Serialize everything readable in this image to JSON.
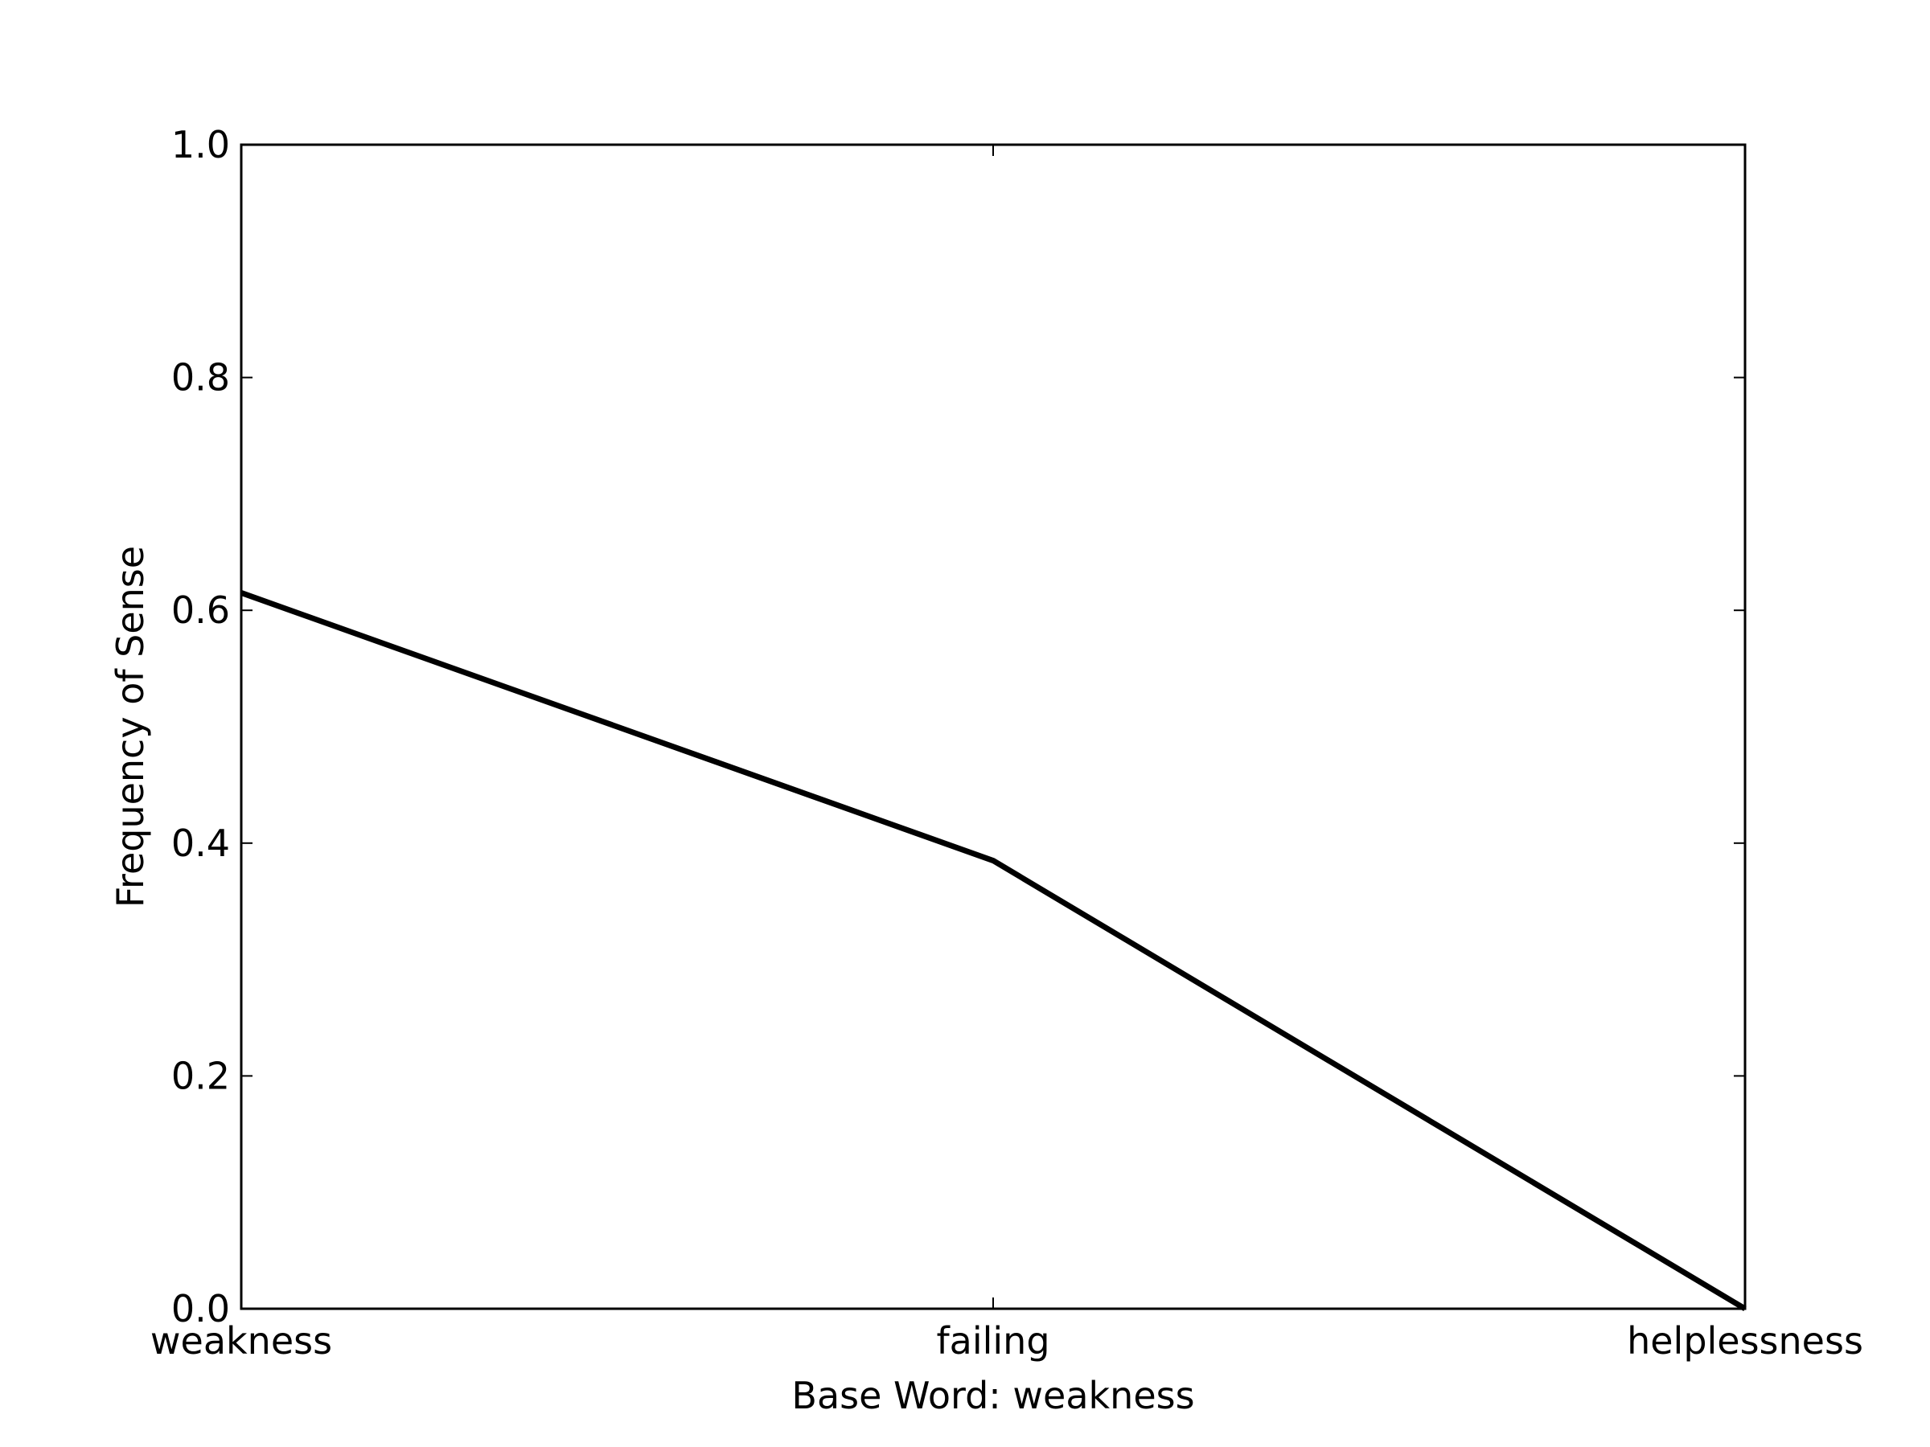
{
  "chart_data": {
    "type": "line",
    "title": "",
    "xlabel": "Base Word: weakness",
    "ylabel": "Frequency of Sense",
    "categories": [
      "weakness",
      "failing",
      "helplessness"
    ],
    "series": [
      {
        "values": [
          0.615,
          0.385,
          0.0
        ]
      }
    ],
    "ylim": [
      0.0,
      1.0
    ],
    "yticks": [
      "0.0",
      "0.2",
      "0.4",
      "0.6",
      "0.8",
      "1.0"
    ],
    "grid": false,
    "line_color": "#000000"
  }
}
